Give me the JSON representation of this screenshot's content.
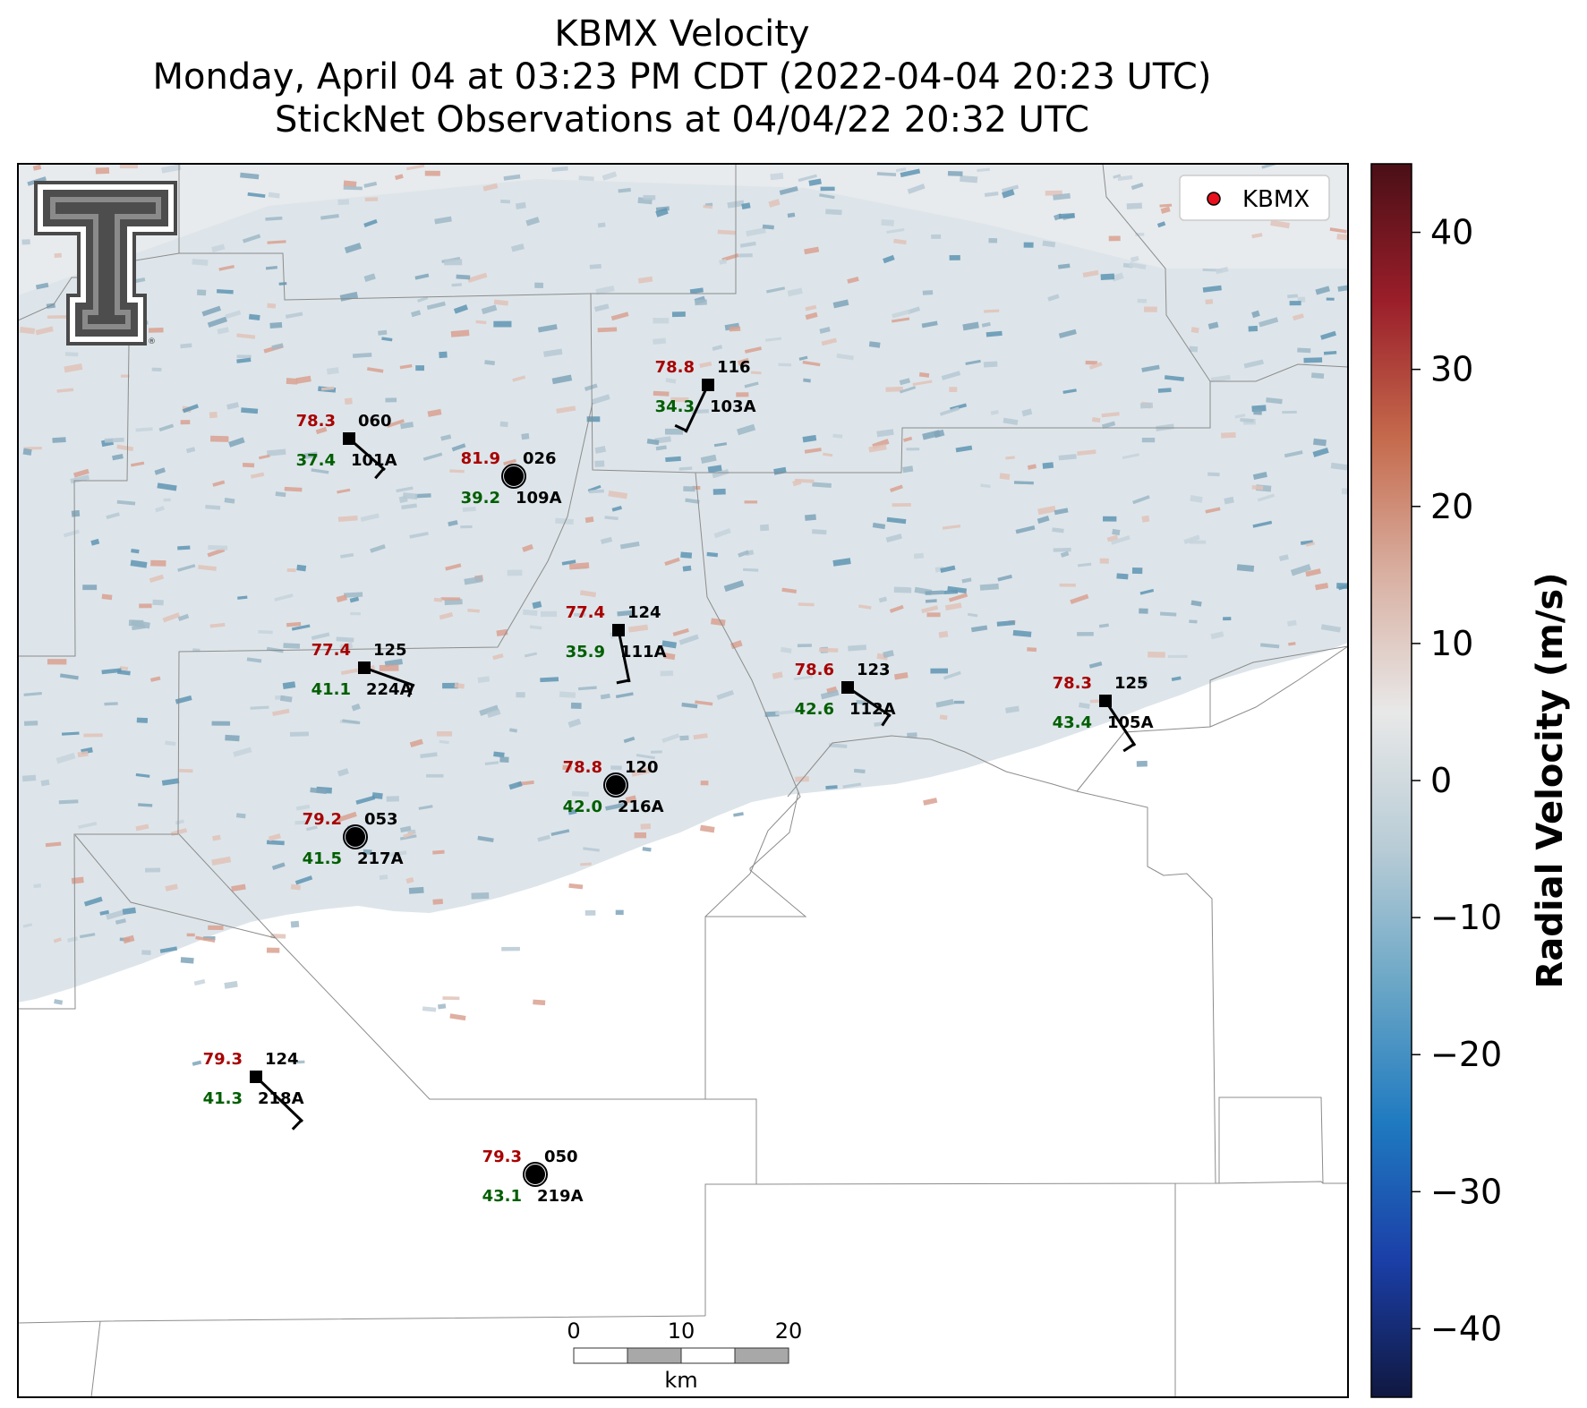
{
  "title": {
    "line1": "KBMX Velocity",
    "line2": "Monday, April 04 at 03:23 PM CDT (2022-04-04 20:23 UTC)",
    "line3": "StickNet Observations at 04/04/22 20:32 UTC"
  },
  "legend": {
    "label": "KBMX",
    "marker_color": "#e8101c"
  },
  "logo": {
    "name": "double-t-logo"
  },
  "colorbar": {
    "label": "Radial Velocity (m/s)",
    "range": [
      -45,
      45
    ],
    "ticks": [
      "40",
      "30",
      "20",
      "10",
      "0",
      "−10",
      "−20",
      "−30",
      "−40"
    ],
    "tick_values": [
      40,
      30,
      20,
      10,
      0,
      -10,
      -20,
      -30,
      -40
    ],
    "colors": [
      "#101840",
      "#1b3fa8",
      "#1f7ac0",
      "#6aa6c6",
      "#b8ccd6",
      "#e8e8e8",
      "#d9b0a2",
      "#c56a4c",
      "#9a1e2a",
      "#4a0f16"
    ]
  },
  "scalebar": {
    "ticks": [
      "0",
      "10",
      "20"
    ],
    "unit": "km"
  },
  "colors": {
    "temp": "#a80000",
    "dewpoint": "#005e00",
    "station": "#000000"
  },
  "stations": [
    {
      "id": "101A",
      "temp": "78.3",
      "dew": "37.4",
      "dir": "060",
      "marker": "square"
    },
    {
      "id": "109A",
      "temp": "81.9",
      "dew": "39.2",
      "dir": "026",
      "marker": "circle"
    },
    {
      "id": "103A",
      "temp": "78.8",
      "dew": "34.3",
      "dir": "116",
      "marker": "square"
    },
    {
      "id": "111A",
      "temp": "77.4",
      "dew": "35.9",
      "dir": "124",
      "marker": "square"
    },
    {
      "id": "224A",
      "temp": "77.4",
      "dew": "41.1",
      "dir": "125",
      "marker": "square"
    },
    {
      "id": "112A",
      "temp": "78.6",
      "dew": "42.6",
      "dir": "123",
      "marker": "square"
    },
    {
      "id": "105A",
      "temp": "78.3",
      "dew": "43.4",
      "dir": "125",
      "marker": "square"
    },
    {
      "id": "216A",
      "temp": "78.8",
      "dew": "42.0",
      "dir": "120",
      "marker": "circle"
    },
    {
      "id": "217A",
      "temp": "79.2",
      "dew": "41.5",
      "dir": "053",
      "marker": "circle"
    },
    {
      "id": "218A",
      "temp": "79.3",
      "dew": "41.3",
      "dir": "124",
      "marker": "square"
    },
    {
      "id": "219A",
      "temp": "79.3",
      "dew": "43.1",
      "dir": "050",
      "marker": "circle"
    }
  ]
}
